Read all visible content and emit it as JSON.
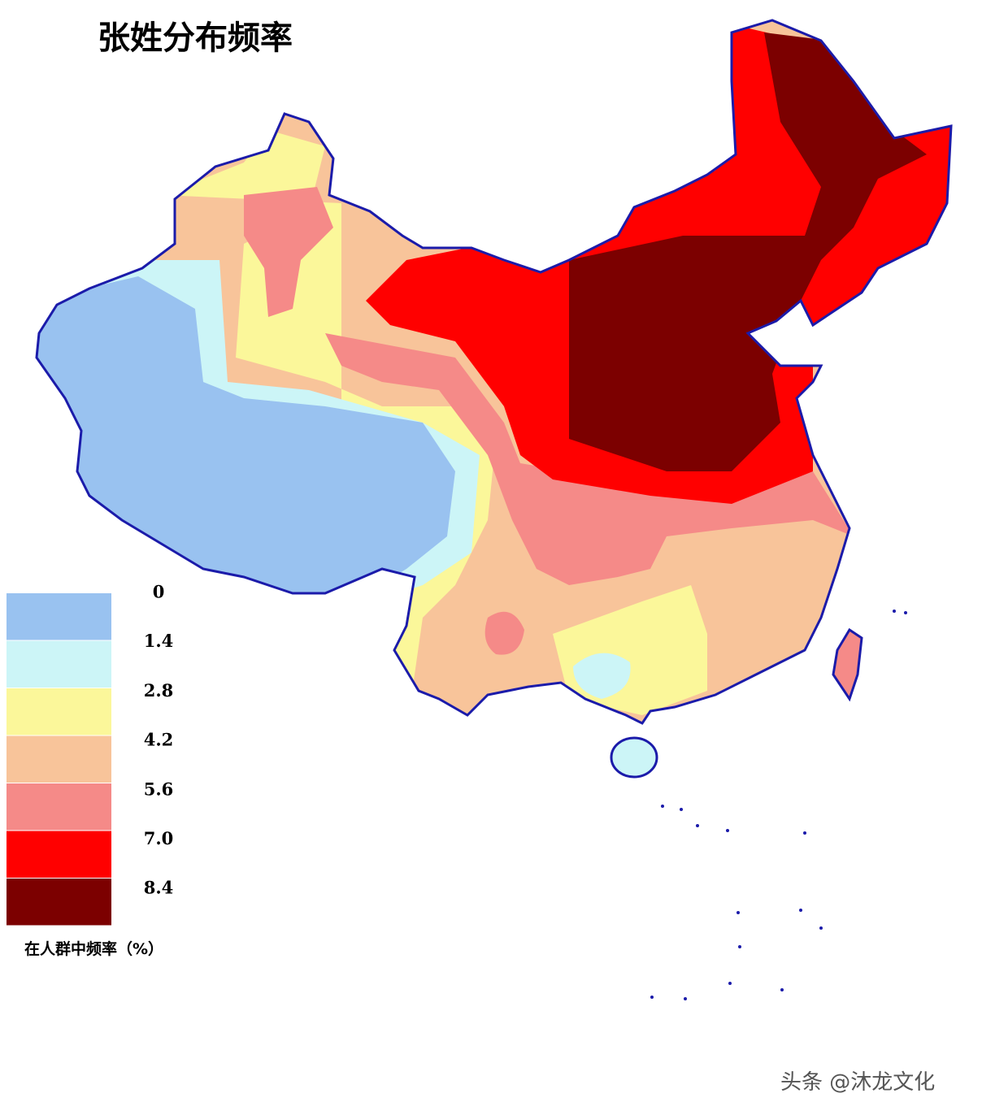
{
  "title": "张姓分布频率",
  "legend": {
    "labels": [
      "0",
      "1.4",
      "2.8",
      "4.2",
      "5.6",
      "7.0",
      "8.4"
    ],
    "colors": [
      "#99c2f0",
      "#ccf5f7",
      "#fbf79a",
      "#f8c49a",
      "#f58a88",
      "#ff0000",
      "#7c0000"
    ],
    "title": "在人群中频率（%）"
  },
  "watermark": "头条 @沐龙文化"
}
